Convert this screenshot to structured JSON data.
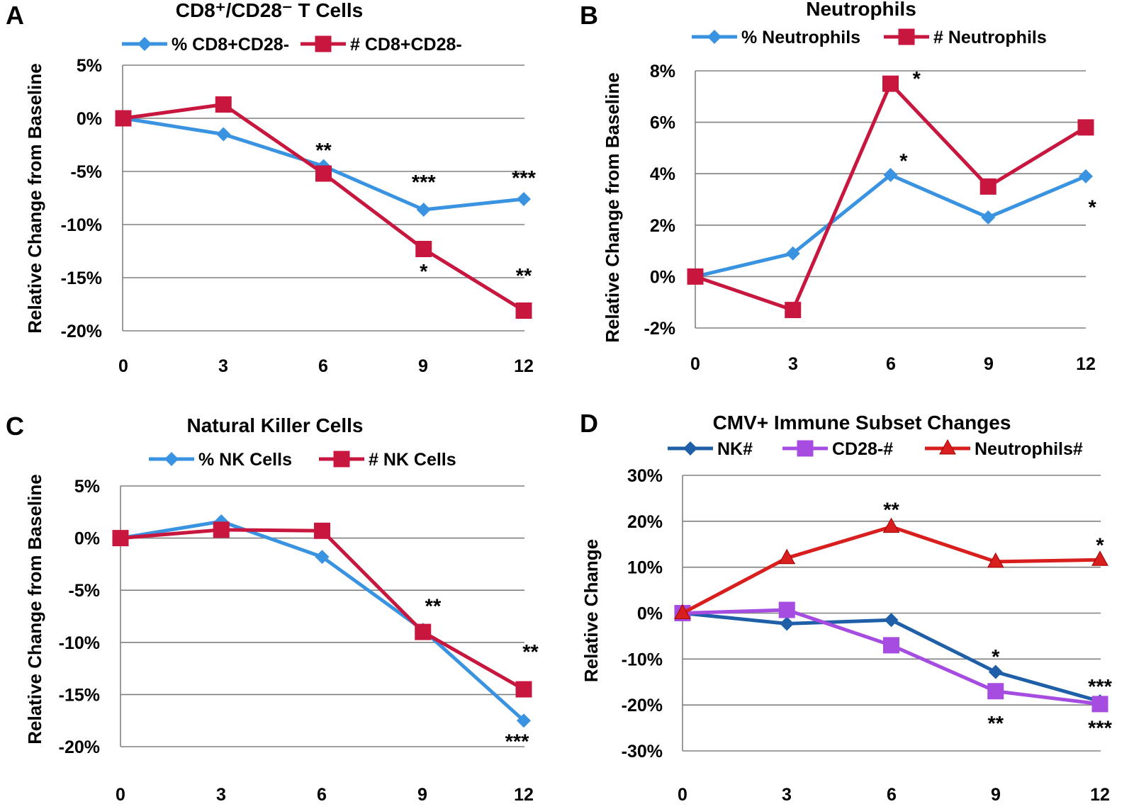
{
  "chart_data": [
    {
      "type": "line",
      "panel": "A",
      "title": "CD8⁺/CD28⁻ T Cells",
      "xlabel": "",
      "ylabel": "Relative Change from Baseline",
      "x": [
        0,
        3,
        6,
        9,
        12
      ],
      "x_tick_labels": [
        "0",
        "3",
        "6",
        "9",
        "12"
      ],
      "y_ticks": [
        5,
        0,
        -5,
        -10,
        -15,
        -20
      ],
      "y_tick_labels": [
        "5%",
        "0%",
        "-5%",
        "-10%",
        "-15%",
        "-20%"
      ],
      "ylim": [
        -20,
        5
      ],
      "grid": "horizontal",
      "legend_position": "top",
      "series": [
        {
          "name": "% CD8+CD28-",
          "color": "#3a93e0",
          "marker": "diamond",
          "values": [
            0,
            -1.5,
            -4.5,
            -8.6,
            -7.6
          ]
        },
        {
          "name": "# CD8+CD28-",
          "color": "#c8173f",
          "marker": "square",
          "values": [
            0,
            1.3,
            -5.2,
            -12.3,
            -18.1
          ]
        }
      ],
      "annotations": [
        {
          "text": "**",
          "x": 6,
          "y": -3.0
        },
        {
          "text": "***",
          "x": 9,
          "y": -6.0
        },
        {
          "text": "***",
          "x": 12,
          "y": -5.6
        },
        {
          "text": "*",
          "x": 9,
          "y": -14.4
        },
        {
          "text": "**",
          "x": 12,
          "y": -14.8
        }
      ]
    },
    {
      "type": "line",
      "panel": "B",
      "title": "Neutrophils",
      "xlabel": "",
      "ylabel": "Relative Change from Baseline",
      "x": [
        0,
        3,
        6,
        9,
        12
      ],
      "x_tick_labels": [
        "0",
        "3",
        "6",
        "9",
        "12"
      ],
      "y_ticks": [
        8,
        6,
        4,
        2,
        0,
        -2
      ],
      "y_tick_labels": [
        "8%",
        "6%",
        "4%",
        "2%",
        "0%",
        "-2%"
      ],
      "ylim": [
        -2,
        8
      ],
      "grid": "horizontal",
      "legend_position": "top",
      "series": [
        {
          "name": "% Neutrophils",
          "color": "#3a93e0",
          "marker": "diamond",
          "values": [
            0,
            0.9,
            3.95,
            2.3,
            3.9
          ]
        },
        {
          "name": "# Neutrophils",
          "color": "#c8173f",
          "marker": "square",
          "values": [
            0,
            -1.3,
            7.5,
            3.5,
            5.8
          ]
        }
      ],
      "annotations": [
        {
          "text": "*",
          "x": 6.8,
          "y": 7.7
        },
        {
          "text": "*",
          "x": 6.4,
          "y": 4.5
        },
        {
          "text": "*",
          "x": 12.2,
          "y": 2.7
        }
      ]
    },
    {
      "type": "line",
      "panel": "C",
      "title": "Natural Killer Cells",
      "xlabel": "",
      "ylabel": "Relative Change from Baseline",
      "x": [
        0,
        3,
        6,
        9,
        12
      ],
      "x_tick_labels": [
        "0",
        "3",
        "6",
        "9",
        "12"
      ],
      "y_ticks": [
        5,
        0,
        -5,
        -10,
        -15,
        -20
      ],
      "y_tick_labels": [
        "5%",
        "0%",
        "-5%",
        "-10%",
        "-15%",
        "-20%"
      ],
      "ylim": [
        -20,
        5
      ],
      "grid": "horizontal",
      "legend_position": "top",
      "series": [
        {
          "name": "% NK Cells",
          "color": "#3a93e0",
          "marker": "diamond",
          "values": [
            0,
            1.6,
            -1.8,
            -8.8,
            -17.5
          ]
        },
        {
          "name": "# NK Cells",
          "color": "#c8173f",
          "marker": "square",
          "values": [
            0,
            0.8,
            0.7,
            -9.0,
            -14.5
          ]
        }
      ],
      "annotations": [
        {
          "text": "**",
          "x": 9.3,
          "y": -6.5
        },
        {
          "text": "**",
          "x": 12.2,
          "y": -10.9
        },
        {
          "text": "***",
          "x": 11.8,
          "y": -19.5
        }
      ]
    },
    {
      "type": "line",
      "panel": "D",
      "title": "CMV+ Immune Subset Changes",
      "xlabel": "",
      "ylabel": "Relative  Change",
      "x": [
        0,
        3,
        6,
        9,
        12
      ],
      "x_tick_labels": [
        "0",
        "3",
        "6",
        "9",
        "12"
      ],
      "y_ticks": [
        30,
        20,
        10,
        0,
        -10,
        -20,
        -30
      ],
      "y_tick_labels": [
        "30%",
        "20%",
        "10%",
        "0%",
        "-10%",
        "-20%",
        "-30%"
      ],
      "ylim": [
        -30,
        30
      ],
      "grid": "horizontal",
      "legend_position": "top",
      "series": [
        {
          "name": "NK#",
          "color": "#1f5fa8",
          "marker": "diamond",
          "values": [
            0,
            -2.3,
            -1.5,
            -12.8,
            -19.2
          ]
        },
        {
          "name": "CD28-#",
          "color": "#a64ce0",
          "marker": "square",
          "values": [
            0,
            0.7,
            -7.0,
            -17.0,
            -19.8
          ]
        },
        {
          "name": "Neutrophils#",
          "color": "#d91e1e",
          "marker": "triangle",
          "values": [
            0,
            12.0,
            18.8,
            11.2,
            11.6
          ]
        }
      ],
      "annotations": [
        {
          "text": "**",
          "x": 6,
          "y": 22.5
        },
        {
          "text": "*",
          "x": 12,
          "y": 14.8
        },
        {
          "text": "*",
          "x": 9,
          "y": -9.5
        },
        {
          "text": "***",
          "x": 12,
          "y": -16.0
        },
        {
          "text": "**",
          "x": 9,
          "y": -24.0
        },
        {
          "text": "***",
          "x": 12,
          "y": -25.0
        }
      ]
    }
  ]
}
